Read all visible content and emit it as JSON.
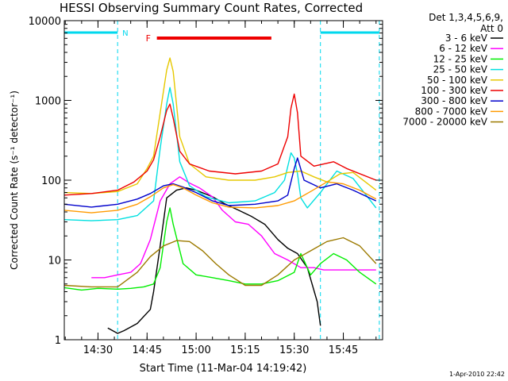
{
  "footer_timestamp": "1-Apr-2010 22:42",
  "chart_data": {
    "type": "line",
    "title": "HESSI Observing Summary Count Rates, Corrected",
    "xlabel": "Start Time (11-Mar-04 14:19:42)",
    "ylabel": "Corrected Count Rate (s⁻¹ detector⁻¹)",
    "y_scale": "log",
    "ylim": [
      1,
      10000
    ],
    "xlim": [
      "14:19:42",
      "15:57:00"
    ],
    "y_ticks": [
      {
        "value": 1,
        "label": "1"
      },
      {
        "value": 10,
        "label": "10"
      },
      {
        "value": 100,
        "label": "100"
      },
      {
        "value": 1000,
        "label": "1000"
      },
      {
        "value": 10000,
        "label": "10000"
      }
    ],
    "x_ticks": [
      {
        "value": "14:30",
        "label": "14:30"
      },
      {
        "value": "14:45",
        "label": "14:45"
      },
      {
        "value": "15:00",
        "label": "15:00"
      },
      {
        "value": "15:15",
        "label": "15:15"
      },
      {
        "value": "15:30",
        "label": "15:30"
      },
      {
        "value": "15:45",
        "label": "15:45"
      }
    ],
    "legend": {
      "placement": "right",
      "header": [
        "Det 1,3,4,5,6,9,",
        "Att 0"
      ]
    },
    "night_intervals": [
      [
        "14:19:42",
        "14:36:00"
      ],
      [
        "15:38:00",
        "15:56:00"
      ]
    ],
    "night_label": "N",
    "flare_interval": [
      "14:48:00",
      "15:23:00"
    ],
    "flare_label": "F",
    "series": [
      {
        "name": "3 - 6 keV",
        "color": "#000000",
        "x": [
          "14:33:00",
          "14:36:00",
          "14:38:00",
          "14:42:00",
          "14:46:00",
          "14:47:00",
          "14:49:00",
          "14:51:00",
          "14:54:00",
          "14:57:00",
          "15:00:00",
          "15:05:00",
          "15:09:00",
          "15:13:00",
          "15:17:00",
          "15:21:00",
          "15:25:00",
          "15:28:00",
          "15:31:00",
          "15:34:00",
          "15:37:00",
          "15:38:00"
        ],
        "y": [
          1.4,
          1.2,
          1.3,
          1.6,
          2.4,
          4,
          15,
          60,
          75,
          80,
          75,
          62,
          50,
          42,
          35,
          28,
          18,
          14,
          12,
          8,
          3,
          1.5
        ]
      },
      {
        "name": "6 - 12 keV",
        "color": "#ff00ff",
        "x": [
          "14:28:00",
          "14:32:00",
          "14:36:00",
          "14:40:00",
          "14:43:00",
          "14:46:00",
          "14:49:00",
          "14:52:00",
          "14:55:00",
          "14:58:00",
          "15:01:00",
          "15:05:00",
          "15:08:00",
          "15:12:00",
          "15:16:00",
          "15:20:00",
          "15:24:00",
          "15:28:00",
          "15:32:00",
          "15:36:00",
          "15:39:00",
          "15:48:00",
          "15:55:00"
        ],
        "y": [
          6,
          6,
          6.5,
          7,
          9,
          18,
          55,
          90,
          110,
          92,
          80,
          62,
          42,
          30,
          28,
          20,
          12,
          10,
          8,
          8,
          7.5,
          7.5,
          7.5
        ]
      },
      {
        "name": "12 - 25 keV",
        "color": "#00ee00",
        "x": [
          "14:19:42",
          "14:25:00",
          "14:30:00",
          "14:36:00",
          "14:40:00",
          "14:44:00",
          "14:47:00",
          "14:49:00",
          "14:51:00",
          "14:52:00",
          "14:53:00",
          "14:56:00",
          "15:00:00",
          "15:05:00",
          "15:10:00",
          "15:15:00",
          "15:20:00",
          "15:25:00",
          "15:30:00",
          "15:32:00",
          "15:35:00",
          "15:38:00",
          "15:42:00",
          "15:46:00",
          "15:50:00",
          "15:55:00"
        ],
        "y": [
          4.5,
          4.2,
          4.4,
          4.3,
          4.4,
          4.6,
          5,
          8,
          30,
          45,
          28,
          9,
          6.5,
          6,
          5.5,
          5,
          5,
          5.5,
          7,
          12,
          6.5,
          9,
          12,
          10,
          7,
          5
        ]
      },
      {
        "name": "25 - 50 keV",
        "color": "#00e0e0",
        "x": [
          "14:19:42",
          "14:28:00",
          "14:36:00",
          "14:42:00",
          "14:47:00",
          "14:49:00",
          "14:51:00",
          "14:52:00",
          "14:53:00",
          "14:55:00",
          "14:58:00",
          "15:03:00",
          "15:10:00",
          "15:18:00",
          "15:24:00",
          "15:27:00",
          "15:29:00",
          "15:30:00",
          "15:31:00",
          "15:32:00",
          "15:34:00",
          "15:38:00",
          "15:43:00",
          "15:48:00",
          "15:55:00"
        ],
        "y": [
          32,
          31,
          32,
          36,
          55,
          250,
          900,
          1450,
          900,
          170,
          85,
          62,
          52,
          55,
          70,
          100,
          220,
          190,
          120,
          60,
          45,
          70,
          130,
          105,
          45
        ]
      },
      {
        "name": "50 - 100 keV",
        "color": "#e6c800",
        "x": [
          "14:19:42",
          "14:28:00",
          "14:36:00",
          "14:42:00",
          "14:45:00",
          "14:47:00",
          "14:49:00",
          "14:51:00",
          "14:52:00",
          "14:53:00",
          "14:55:00",
          "14:58:00",
          "15:03:00",
          "15:10:00",
          "15:18:00",
          "15:24:00",
          "15:28:00",
          "15:32:00",
          "15:36:00",
          "15:40:00",
          "15:44:00",
          "15:48:00",
          "15:55:00"
        ],
        "y": [
          70,
          68,
          72,
          90,
          140,
          200,
          700,
          2400,
          3400,
          2300,
          350,
          160,
          110,
          100,
          100,
          110,
          125,
          130,
          110,
          95,
          120,
          125,
          75
        ]
      },
      {
        "name": "100 - 300 keV",
        "color": "#ee0000",
        "x": [
          "14:19:42",
          "14:28:00",
          "14:36:00",
          "14:41:00",
          "14:45:00",
          "14:47:00",
          "14:49:00",
          "14:51:00",
          "14:52:00",
          "14:53:00",
          "14:55:00",
          "14:58:00",
          "15:04:00",
          "15:12:00",
          "15:20:00",
          "15:25:00",
          "15:28:00",
          "15:29:00",
          "15:30:00",
          "15:31:00",
          "15:32:00",
          "15:36:00",
          "15:42:00",
          "15:46:00",
          "15:55:00"
        ],
        "y": [
          65,
          68,
          75,
          95,
          130,
          180,
          350,
          750,
          900,
          600,
          230,
          160,
          130,
          120,
          130,
          160,
          350,
          800,
          1200,
          700,
          200,
          150,
          170,
          140,
          100
        ]
      },
      {
        "name": "300 - 800 keV",
        "color": "#0000cc",
        "x": [
          "14:19:42",
          "14:28:00",
          "14:36:00",
          "14:42:00",
          "14:46:00",
          "14:50:00",
          "14:53:00",
          "14:56:00",
          "15:00:00",
          "15:05:00",
          "15:10:00",
          "15:18:00",
          "15:25:00",
          "15:28:00",
          "15:30:00",
          "15:31:00",
          "15:33:00",
          "15:38:00",
          "15:43:00",
          "15:48:00",
          "15:55:00"
        ],
        "y": [
          50,
          46,
          50,
          58,
          68,
          85,
          90,
          82,
          70,
          55,
          48,
          50,
          55,
          65,
          140,
          190,
          100,
          80,
          90,
          75,
          55
        ]
      },
      {
        "name": "800 - 7000 keV",
        "color": "#ff9a00",
        "x": [
          "14:19:42",
          "14:28:00",
          "14:36:00",
          "14:42:00",
          "14:46:00",
          "14:50:00",
          "14:53:00",
          "14:56:00",
          "15:00:00",
          "15:05:00",
          "15:10:00",
          "15:18:00",
          "15:25:00",
          "15:30:00",
          "15:35:00",
          "15:40:00",
          "15:45:00",
          "15:50:00",
          "15:55:00"
        ],
        "y": [
          42,
          39,
          42,
          50,
          62,
          80,
          88,
          80,
          65,
          52,
          46,
          45,
          48,
          55,
          72,
          95,
          90,
          75,
          58
        ]
      },
      {
        "name": "7000 - 20000 keV",
        "color": "#9c7a00",
        "x": [
          "14:19:42",
          "14:28:00",
          "14:36:00",
          "14:42:00",
          "14:46:00",
          "14:50:00",
          "14:54:00",
          "14:58:00",
          "15:02:00",
          "15:06:00",
          "15:10:00",
          "15:15:00",
          "15:20:00",
          "15:25:00",
          "15:30:00",
          "15:35:00",
          "15:40:00",
          "15:45:00",
          "15:50:00",
          "15:55:00"
        ],
        "y": [
          4.8,
          4.6,
          4.6,
          7,
          11,
          15,
          17.5,
          17,
          13,
          9,
          6.5,
          4.8,
          4.8,
          6.5,
          10,
          13,
          17,
          19,
          15,
          9
        ]
      }
    ]
  }
}
